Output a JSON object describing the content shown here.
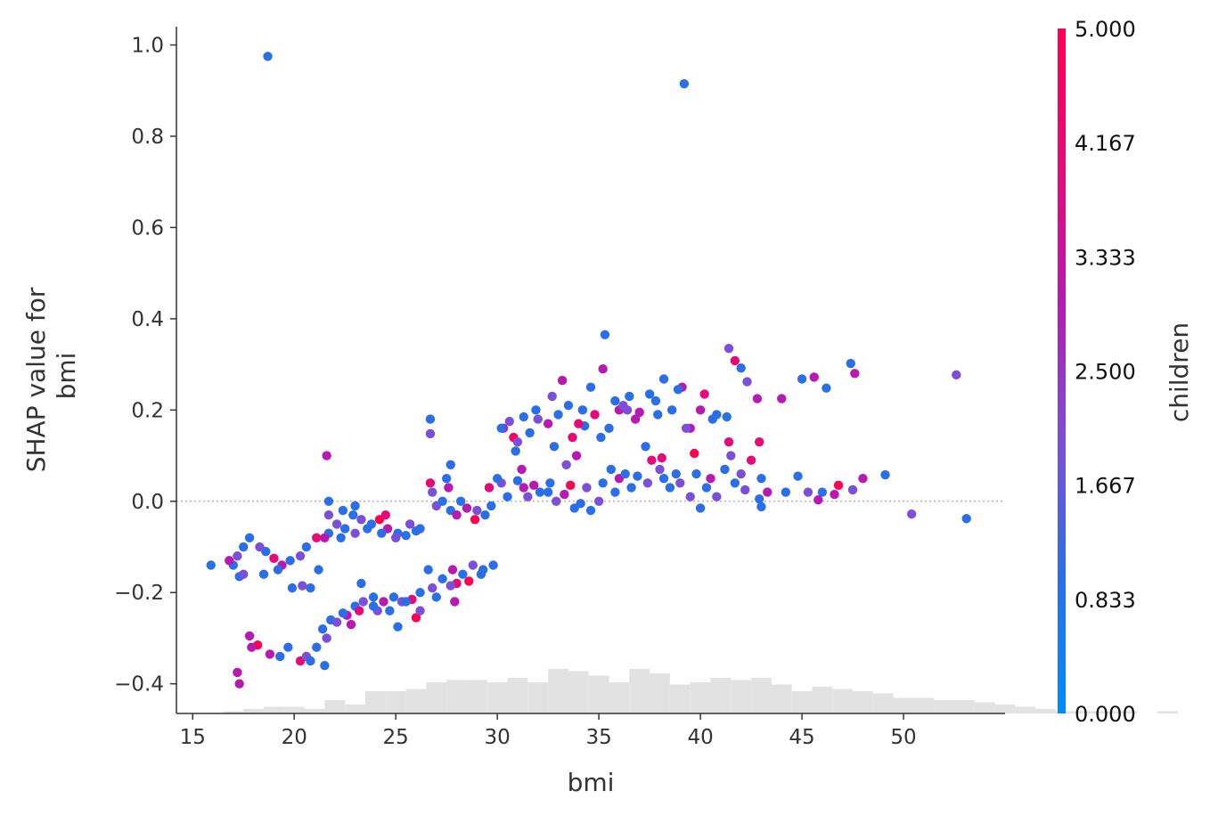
{
  "chart_data": {
    "type": "scatter",
    "xlabel": "bmi",
    "ylabel_lines": [
      "SHAP value for",
      "bmi"
    ],
    "xlim": [
      14.2,
      55.0
    ],
    "ylim": [
      -0.465,
      1.04
    ],
    "xticks": [
      15,
      20,
      25,
      30,
      35,
      40,
      45,
      50
    ],
    "yticks": [
      -0.4,
      -0.2,
      0.0,
      0.2,
      0.4,
      0.6,
      0.8,
      1.0
    ],
    "ytick_labels": [
      "−0.4",
      "−0.2",
      "0.0",
      "0.2",
      "0.4",
      "0.6",
      "0.8",
      "1.0"
    ],
    "zero_line": true,
    "colorbar": {
      "label": "children",
      "min": 0,
      "max": 5,
      "tick_labels": [
        "0.000",
        "0.833",
        "1.667",
        "2.500",
        "3.333",
        "4.167",
        "5.000"
      ],
      "colors": [
        "#008bfb",
        "#2b6fe8",
        "#7c4fd8",
        "#b61ab0",
        "#e40a78",
        "#ff0052"
      ]
    },
    "histogram": {
      "bin_start": 15.5,
      "bin_width": 1.0,
      "counts": [
        0,
        1,
        2,
        3,
        3,
        2,
        6,
        4,
        10,
        10,
        11,
        14,
        15,
        15,
        14,
        16,
        14,
        20,
        19,
        17,
        14,
        20,
        18,
        13,
        14,
        16,
        15,
        16,
        13,
        10,
        12,
        11,
        10,
        9,
        7,
        7,
        6,
        6,
        5,
        4,
        3,
        2,
        1,
        1,
        1,
        1,
        0,
        1,
        0
      ]
    },
    "points": [
      [
        18.7,
        0.975,
        1
      ],
      [
        39.2,
        0.915,
        1
      ],
      [
        35.3,
        0.365,
        1
      ],
      [
        41.4,
        0.335,
        2
      ],
      [
        52.6,
        0.277,
        2
      ],
      [
        47.4,
        0.302,
        1
      ],
      [
        47.6,
        0.28,
        3
      ],
      [
        45.6,
        0.272,
        3
      ],
      [
        45.0,
        0.268,
        1
      ],
      [
        46.2,
        0.248,
        1
      ],
      [
        41.7,
        0.308,
        4
      ],
      [
        42.0,
        0.292,
        1
      ],
      [
        42.3,
        0.262,
        2
      ],
      [
        42.8,
        0.225,
        3
      ],
      [
        44.0,
        0.225,
        3
      ],
      [
        35.2,
        0.29,
        3
      ],
      [
        33.2,
        0.265,
        3
      ],
      [
        38.2,
        0.268,
        1
      ],
      [
        39.1,
        0.25,
        3
      ],
      [
        40.2,
        0.235,
        4
      ],
      [
        39.5,
        0.16,
        3
      ],
      [
        41.4,
        0.13,
        4
      ],
      [
        42.9,
        0.13,
        4
      ],
      [
        37.3,
        0.12,
        1
      ],
      [
        38.1,
        0.095,
        4
      ],
      [
        39.7,
        0.105,
        5
      ],
      [
        29.8,
        -0.14,
        1
      ],
      [
        36.5,
        0.23,
        1
      ],
      [
        37.5,
        0.235,
        1
      ],
      [
        36.0,
        0.2,
        3
      ],
      [
        37.0,
        0.195,
        3
      ],
      [
        34.2,
        0.2,
        1
      ],
      [
        34.8,
        0.19,
        4
      ],
      [
        33.9,
        0.1,
        3
      ],
      [
        33.0,
        0.19,
        1
      ],
      [
        32.0,
        0.18,
        2
      ],
      [
        31.3,
        0.185,
        1
      ],
      [
        30.6,
        0.175,
        2
      ],
      [
        30.3,
        0.16,
        3
      ],
      [
        30.8,
        0.14,
        5
      ],
      [
        31.6,
        0.15,
        1
      ],
      [
        32.5,
        0.17,
        3
      ],
      [
        35.5,
        0.16,
        1
      ],
      [
        36.8,
        0.18,
        3
      ],
      [
        38.6,
        0.2,
        1
      ],
      [
        40.8,
        0.19,
        1
      ],
      [
        41.3,
        0.185,
        1
      ],
      [
        40.0,
        0.2,
        3
      ],
      [
        30.2,
        0.16,
        1
      ],
      [
        31.0,
        0.13,
        2
      ],
      [
        32.8,
        0.12,
        1
      ],
      [
        33.7,
        0.14,
        4
      ],
      [
        34.3,
        0.165,
        1
      ],
      [
        35.1,
        0.14,
        1
      ],
      [
        36.2,
        0.21,
        2
      ],
      [
        37.8,
        0.22,
        1
      ],
      [
        38.9,
        0.245,
        1
      ],
      [
        41.5,
        0.1,
        2
      ],
      [
        42.5,
        0.09,
        4
      ],
      [
        43.0,
        0.05,
        1
      ],
      [
        44.8,
        0.055,
        1
      ],
      [
        46.8,
        0.035,
        5
      ],
      [
        47.5,
        0.025,
        2
      ],
      [
        49.1,
        0.058,
        1
      ],
      [
        48.0,
        0.05,
        3
      ],
      [
        44.2,
        0.02,
        1
      ],
      [
        45.3,
        0.02,
        2
      ],
      [
        46.0,
        0.02,
        1
      ],
      [
        43.3,
        0.02,
        3
      ],
      [
        42.2,
        0.025,
        2
      ],
      [
        50.4,
        -0.028,
        2
      ],
      [
        53.1,
        -0.038,
        1
      ],
      [
        46.6,
        0.015,
        3
      ],
      [
        45.8,
        0.003,
        3
      ],
      [
        43.0,
        -0.012,
        1
      ],
      [
        42.9,
        0.005,
        1
      ],
      [
        40.8,
        0.01,
        2
      ],
      [
        40.0,
        -0.015,
        1
      ],
      [
        39.5,
        0.01,
        2
      ],
      [
        38.5,
        0.03,
        1
      ],
      [
        37.6,
        0.09,
        4
      ],
      [
        38.0,
        0.07,
        2
      ],
      [
        38.8,
        0.06,
        1
      ],
      [
        39.8,
        0.06,
        1
      ],
      [
        40.5,
        0.05,
        3
      ],
      [
        41.2,
        0.07,
        1
      ],
      [
        42.0,
        0.06,
        2
      ],
      [
        36.9,
        0.055,
        1
      ],
      [
        36.0,
        0.05,
        3
      ],
      [
        35.2,
        0.04,
        1
      ],
      [
        34.4,
        0.03,
        2
      ],
      [
        33.6,
        0.035,
        5
      ],
      [
        32.6,
        0.04,
        1
      ],
      [
        31.8,
        0.035,
        3
      ],
      [
        31.0,
        0.045,
        1
      ],
      [
        30.2,
        0.04,
        2
      ],
      [
        29.6,
        0.03,
        4
      ],
      [
        30.5,
        0.01,
        1
      ],
      [
        31.5,
        0.01,
        2
      ],
      [
        32.5,
        0.02,
        1
      ],
      [
        33.3,
        0.015,
        3
      ],
      [
        34.1,
        -0.005,
        1
      ],
      [
        35.0,
        0.0,
        2
      ],
      [
        35.8,
        0.02,
        1
      ],
      [
        36.6,
        0.03,
        1
      ],
      [
        37.4,
        0.04,
        2
      ],
      [
        38.2,
        0.05,
        1
      ],
      [
        34.6,
        -0.02,
        1
      ],
      [
        33.8,
        -0.015,
        1
      ],
      [
        32.9,
        0.0,
        2
      ],
      [
        32.1,
        0.02,
        1
      ],
      [
        31.3,
        0.03,
        3
      ],
      [
        30.0,
        0.05,
        1
      ],
      [
        28.5,
        -0.015,
        3
      ],
      [
        27.7,
        -0.02,
        1
      ],
      [
        27.0,
        -0.01,
        2
      ],
      [
        28.9,
        -0.04,
        5
      ],
      [
        29.4,
        -0.03,
        1
      ],
      [
        28.0,
        -0.03,
        3
      ],
      [
        27.3,
        0.0,
        1
      ],
      [
        26.8,
        0.02,
        2
      ],
      [
        26.7,
        0.04,
        4
      ],
      [
        26.7,
        0.18,
        1
      ],
      [
        26.7,
        0.148,
        2
      ],
      [
        27.7,
        0.08,
        1
      ],
      [
        27.5,
        0.05,
        1
      ],
      [
        27.6,
        0.03,
        3
      ],
      [
        29.0,
        -0.02,
        2
      ],
      [
        29.7,
        -0.01,
        1
      ],
      [
        28.2,
        0.0,
        1
      ],
      [
        26.2,
        -0.06,
        1
      ],
      [
        25.7,
        -0.05,
        2
      ],
      [
        25.1,
        -0.07,
        1
      ],
      [
        24.6,
        -0.06,
        3
      ],
      [
        24.2,
        -0.04,
        5
      ],
      [
        23.8,
        -0.05,
        1
      ],
      [
        23.3,
        -0.04,
        2
      ],
      [
        22.9,
        -0.03,
        1
      ],
      [
        22.5,
        -0.06,
        1
      ],
      [
        22.1,
        -0.05,
        2
      ],
      [
        21.7,
        -0.07,
        1
      ],
      [
        21.5,
        -0.08,
        3
      ],
      [
        22.3,
        -0.08,
        1
      ],
      [
        23.0,
        -0.07,
        2
      ],
      [
        23.6,
        -0.06,
        1
      ],
      [
        24.3,
        -0.07,
        1
      ],
      [
        25.0,
        -0.08,
        2
      ],
      [
        25.5,
        -0.075,
        1
      ],
      [
        26.0,
        -0.065,
        1
      ],
      [
        21.7,
        0.0,
        1
      ],
      [
        21.7,
        -0.03,
        2
      ],
      [
        21.6,
        0.1,
        3
      ],
      [
        23.0,
        -0.01,
        1
      ],
      [
        24.5,
        -0.03,
        4
      ],
      [
        22.4,
        -0.02,
        1
      ],
      [
        21.1,
        -0.08,
        4
      ],
      [
        20.6,
        -0.1,
        1
      ],
      [
        20.3,
        -0.12,
        2
      ],
      [
        19.8,
        -0.13,
        1
      ],
      [
        19.4,
        -0.14,
        3
      ],
      [
        19.0,
        -0.125,
        4
      ],
      [
        18.6,
        -0.11,
        1
      ],
      [
        18.3,
        -0.1,
        2
      ],
      [
        17.8,
        -0.08,
        1
      ],
      [
        17.5,
        -0.1,
        1
      ],
      [
        17.2,
        -0.12,
        2
      ],
      [
        17.0,
        -0.14,
        1
      ],
      [
        16.8,
        -0.13,
        3
      ],
      [
        15.9,
        -0.14,
        1
      ],
      [
        17.3,
        -0.165,
        1
      ],
      [
        17.5,
        -0.16,
        2
      ],
      [
        18.5,
        -0.16,
        1
      ],
      [
        19.2,
        -0.15,
        1
      ],
      [
        19.9,
        -0.19,
        1
      ],
      [
        20.4,
        -0.185,
        2
      ],
      [
        20.8,
        -0.19,
        1
      ],
      [
        21.2,
        -0.15,
        1
      ],
      [
        21.5,
        -0.36,
        1
      ],
      [
        21.6,
        -0.3,
        2
      ],
      [
        21.4,
        -0.28,
        1
      ],
      [
        18.2,
        -0.315,
        5
      ],
      [
        17.8,
        -0.295,
        3
      ],
      [
        17.9,
        -0.32,
        3
      ],
      [
        17.2,
        -0.375,
        3
      ],
      [
        17.3,
        -0.4,
        3
      ],
      [
        18.8,
        -0.335,
        3
      ],
      [
        19.3,
        -0.34,
        1
      ],
      [
        19.7,
        -0.32,
        1
      ],
      [
        20.3,
        -0.35,
        4
      ],
      [
        20.6,
        -0.34,
        2
      ],
      [
        20.8,
        -0.35,
        1
      ],
      [
        21.1,
        -0.32,
        1
      ],
      [
        21.8,
        -0.26,
        1
      ],
      [
        22.1,
        -0.265,
        2
      ],
      [
        22.6,
        -0.25,
        3
      ],
      [
        23.0,
        -0.23,
        1
      ],
      [
        23.4,
        -0.22,
        2
      ],
      [
        23.9,
        -0.21,
        1
      ],
      [
        24.4,
        -0.22,
        3
      ],
      [
        24.9,
        -0.21,
        1
      ],
      [
        25.3,
        -0.22,
        2
      ],
      [
        25.8,
        -0.215,
        4
      ],
      [
        26.2,
        -0.2,
        1
      ],
      [
        26.8,
        -0.19,
        2
      ],
      [
        27.3,
        -0.17,
        1
      ],
      [
        27.8,
        -0.15,
        3
      ],
      [
        28.3,
        -0.16,
        1
      ],
      [
        28.8,
        -0.14,
        2
      ],
      [
        29.3,
        -0.15,
        1
      ],
      [
        28.0,
        -0.18,
        4
      ],
      [
        27.0,
        -0.21,
        1
      ],
      [
        26.0,
        -0.255,
        5
      ],
      [
        25.1,
        -0.275,
        1
      ],
      [
        24.1,
        -0.24,
        2
      ],
      [
        23.2,
        -0.24,
        4
      ],
      [
        22.4,
        -0.245,
        1
      ],
      [
        22.8,
        -0.27,
        3
      ],
      [
        23.9,
        -0.23,
        1
      ],
      [
        24.7,
        -0.24,
        1
      ],
      [
        25.5,
        -0.22,
        1
      ],
      [
        26.2,
        -0.24,
        2
      ],
      [
        28.6,
        -0.175,
        5
      ],
      [
        29.2,
        -0.16,
        1
      ],
      [
        27.7,
        -0.185,
        2
      ],
      [
        23.3,
        -0.18,
        1
      ],
      [
        26.6,
        -0.15,
        1
      ],
      [
        27.9,
        -0.22,
        3
      ],
      [
        35.8,
        0.22,
        1
      ],
      [
        36.4,
        0.2,
        2
      ],
      [
        37.9,
        0.19,
        1
      ],
      [
        39.3,
        0.16,
        2
      ],
      [
        40.6,
        0.18,
        1
      ],
      [
        33.5,
        0.21,
        1
      ],
      [
        32.7,
        0.23,
        2
      ],
      [
        31.9,
        0.2,
        1
      ],
      [
        34.6,
        0.25,
        1
      ],
      [
        34.0,
        0.17,
        4
      ],
      [
        35.6,
        0.07,
        1
      ],
      [
        33.4,
        0.08,
        2
      ],
      [
        36.3,
        0.06,
        1
      ],
      [
        39.0,
        0.04,
        2
      ],
      [
        40.3,
        0.03,
        1
      ],
      [
        41.7,
        0.04,
        1
      ],
      [
        30.9,
        0.11,
        1
      ],
      [
        31.2,
        0.07,
        3
      ]
    ]
  }
}
